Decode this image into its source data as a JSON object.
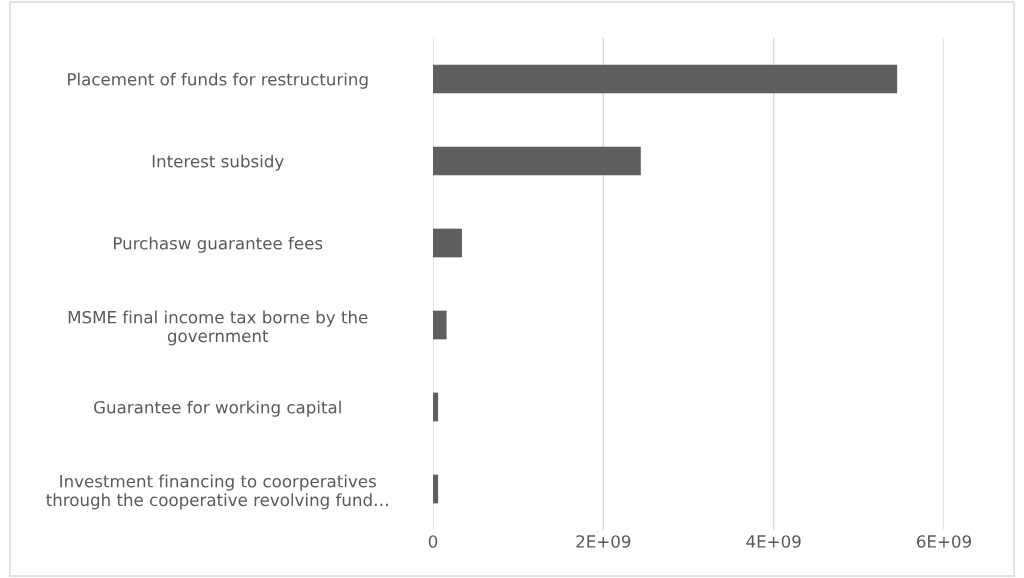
{
  "chart_data": {
    "type": "bar",
    "orientation": "horizontal",
    "categories": [
      "Placement of funds for restructuring",
      "Interest subsidy",
      "Purchasw guarantee fees",
      "MSME final income tax borne by the\ngovernment",
      "Guarantee for working capital",
      "Investment financing to coorperatives\nthrough the cooperative revolving fund…"
    ],
    "values": [
      5450000000,
      2440000000,
      340000000,
      160000000,
      60000000,
      60000000
    ],
    "color": "#5f5f5f",
    "xlim": [
      0,
      6000000000
    ],
    "xticks": [
      0,
      {
        "value": 2000000000,
        "label": "2E+09"
      },
      {
        "value": 4000000000,
        "label": "4E+09"
      },
      {
        "value": 6000000000,
        "label": "6E+09"
      }
    ],
    "grid": "x"
  }
}
